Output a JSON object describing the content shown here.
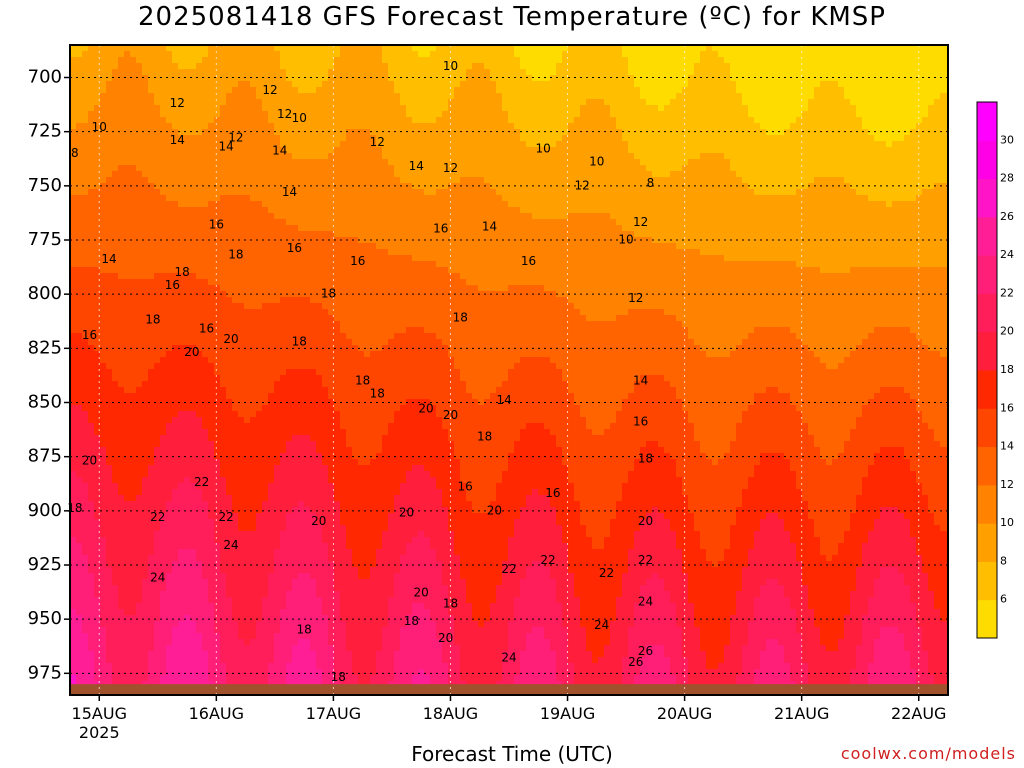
{
  "title": "2025081418 GFS Forecast Temperature (ºC) for KMSP",
  "credit": "coolwx.com/models",
  "chart_data": {
    "type": "heatmap",
    "title": "2025081418 GFS Forecast Temperature (ºC) for KMSP",
    "xlabel": "Forecast Time (UTC)",
    "ylabel": "",
    "x_ticks": [
      {
        "label": "15AUG",
        "sublabel": "2025",
        "hour": 6
      },
      {
        "label": "16AUG",
        "hour": 30
      },
      {
        "label": "17AUG",
        "hour": 54
      },
      {
        "label": "18AUG",
        "hour": 78
      },
      {
        "label": "19AUG",
        "hour": 102
      },
      {
        "label": "20AUG",
        "hour": 126
      },
      {
        "label": "21AUG",
        "hour": 150
      },
      {
        "label": "22AUG",
        "hour": 174
      }
    ],
    "xlim": [
      0,
      180
    ],
    "y_ticks": [
      700,
      725,
      750,
      775,
      800,
      825,
      850,
      875,
      900,
      925,
      950,
      975
    ],
    "ylim": [
      685,
      985
    ],
    "y_unit": "hPa",
    "grid": true,
    "colorbar": {
      "ticks": [
        6,
        8,
        10,
        12,
        14,
        16,
        18,
        20,
        22,
        24,
        26,
        28,
        30
      ],
      "range": [
        4,
        32
      ],
      "colors": [
        "#ffdc00",
        "#ffbe00",
        "#ffa000",
        "#ff8200",
        "#ff6400",
        "#ff4600",
        "#ff2800",
        "#ff1e3c",
        "#ff1e5a",
        "#ff1e78",
        "#ff1e96",
        "#ff14c8",
        "#ff00e6",
        "#ff00ff"
      ]
    },
    "contour_labels": [
      {
        "text": "12",
        "hour": 22,
        "p": 712
      },
      {
        "text": "14",
        "hour": 22,
        "p": 729
      },
      {
        "text": "10",
        "hour": 6,
        "p": 723
      },
      {
        "text": "8",
        "hour": 1,
        "p": 735
      },
      {
        "text": "14",
        "hour": 8,
        "p": 784
      },
      {
        "text": "16",
        "hour": 4,
        "p": 819
      },
      {
        "text": "18",
        "hour": 17,
        "p": 812
      },
      {
        "text": "16",
        "hour": 21,
        "p": 796
      },
      {
        "text": "18",
        "hour": 23,
        "p": 790
      },
      {
        "text": "16",
        "hour": 28,
        "p": 816
      },
      {
        "text": "20",
        "hour": 25,
        "p": 827
      },
      {
        "text": "16",
        "hour": 30,
        "p": 768
      },
      {
        "text": "18",
        "hour": 34,
        "p": 782
      },
      {
        "text": "20",
        "hour": 33,
        "p": 821
      },
      {
        "text": "14",
        "hour": 32,
        "p": 732
      },
      {
        "text": "12",
        "hour": 34,
        "p": 728
      },
      {
        "text": "12",
        "hour": 41,
        "p": 706
      },
      {
        "text": "14",
        "hour": 43,
        "p": 734
      },
      {
        "text": "12",
        "hour": 44,
        "p": 717
      },
      {
        "text": "10",
        "hour": 47,
        "p": 719
      },
      {
        "text": "14",
        "hour": 45,
        "p": 753
      },
      {
        "text": "16",
        "hour": 46,
        "p": 779
      },
      {
        "text": "18",
        "hour": 53,
        "p": 800
      },
      {
        "text": "16",
        "hour": 59,
        "p": 785
      },
      {
        "text": "18",
        "hour": 47,
        "p": 822
      },
      {
        "text": "12",
        "hour": 63,
        "p": 730
      },
      {
        "text": "14",
        "hour": 71,
        "p": 741
      },
      {
        "text": "12",
        "hour": 78,
        "p": 742
      },
      {
        "text": "10",
        "hour": 78,
        "p": 695
      },
      {
        "text": "16",
        "hour": 76,
        "p": 770
      },
      {
        "text": "18",
        "hour": 80,
        "p": 811
      },
      {
        "text": "18",
        "hour": 63,
        "p": 846
      },
      {
        "text": "20",
        "hour": 78,
        "p": 856
      },
      {
        "text": "18",
        "hour": 85,
        "p": 866
      },
      {
        "text": "10",
        "hour": 97,
        "p": 733
      },
      {
        "text": "12",
        "hour": 105,
        "p": 750
      },
      {
        "text": "14",
        "hour": 86,
        "p": 769
      },
      {
        "text": "16",
        "hour": 94,
        "p": 785
      },
      {
        "text": "10",
        "hour": 108,
        "p": 739
      },
      {
        "text": "12",
        "hour": 117,
        "p": 767
      },
      {
        "text": "8",
        "hour": 119,
        "p": 749
      },
      {
        "text": "10",
        "hour": 114,
        "p": 775
      },
      {
        "text": "12",
        "hour": 116,
        "p": 802
      },
      {
        "text": "14",
        "hour": 117,
        "p": 840
      },
      {
        "text": "16",
        "hour": 117,
        "p": 859
      },
      {
        "text": "18",
        "hour": 118,
        "p": 876
      },
      {
        "text": "20",
        "hour": 118,
        "p": 905
      },
      {
        "text": "22",
        "hour": 118,
        "p": 923
      },
      {
        "text": "24",
        "hour": 118,
        "p": 942
      },
      {
        "text": "26",
        "hour": 118,
        "p": 965
      },
      {
        "text": "20",
        "hour": 4,
        "p": 877
      },
      {
        "text": "18",
        "hour": 1,
        "p": 899
      },
      {
        "text": "22",
        "hour": 18,
        "p": 903
      },
      {
        "text": "22",
        "hour": 27,
        "p": 887
      },
      {
        "text": "22",
        "hour": 32,
        "p": 903
      },
      {
        "text": "24",
        "hour": 33,
        "p": 916
      },
      {
        "text": "24",
        "hour": 18,
        "p": 931
      },
      {
        "text": "20",
        "hour": 51,
        "p": 905
      },
      {
        "text": "18",
        "hour": 48,
        "p": 955
      },
      {
        "text": "18",
        "hour": 55,
        "p": 977
      },
      {
        "text": "18",
        "hour": 60,
        "p": 840
      },
      {
        "text": "20",
        "hour": 72,
        "p": 938
      },
      {
        "text": "20",
        "hour": 73,
        "p": 853
      },
      {
        "text": "18",
        "hour": 78,
        "p": 943
      },
      {
        "text": "16",
        "hour": 81,
        "p": 889
      },
      {
        "text": "20",
        "hour": 87,
        "p": 900
      },
      {
        "text": "22",
        "hour": 90,
        "p": 927
      },
      {
        "text": "14",
        "hour": 89,
        "p": 849
      },
      {
        "text": "22",
        "hour": 110,
        "p": 929
      },
      {
        "text": "24",
        "hour": 109,
        "p": 953
      },
      {
        "text": "26",
        "hour": 116,
        "p": 970
      },
      {
        "text": "20",
        "hour": 77,
        "p": 959
      },
      {
        "text": "22",
        "hour": 98,
        "p": 923
      },
      {
        "text": "24",
        "hour": 90,
        "p": 968
      },
      {
        "text": "18",
        "hour": 70,
        "p": 951
      },
      {
        "text": "20",
        "hour": 69,
        "p": 901
      },
      {
        "text": "16",
        "hour": 99,
        "p": 892
      }
    ]
  }
}
